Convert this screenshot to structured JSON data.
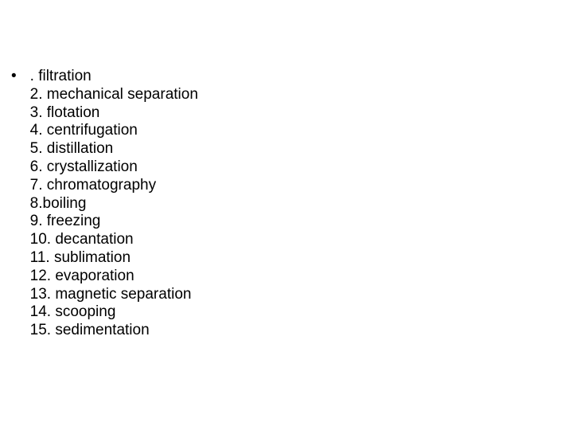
{
  "list": {
    "bullet_symbol": "•",
    "items": [
      ". filtration",
      "2. mechanical separation",
      "3. flotation",
      "4. centrifugation",
      "5. distillation",
      "6. crystallization",
      "7. chromatography",
      "8.boiling",
      "9. freezing",
      "10. decantation",
      "11. sublimation",
      "12. evaporation",
      "13. magnetic separation",
      "14. scooping",
      "15. sedimentation"
    ]
  },
  "style": {
    "background_color": "#ffffff",
    "text_color": "#000000",
    "font_size_pt": 14,
    "font_family": "Arial"
  }
}
